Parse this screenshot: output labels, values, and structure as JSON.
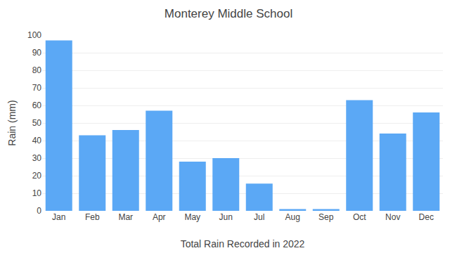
{
  "chart_data": {
    "type": "bar",
    "title": "Monterey Middle School",
    "xlabel": "Total Rain Recorded in 2022",
    "ylabel": "Rain (mm)",
    "categories": [
      "Jan",
      "Feb",
      "Mar",
      "Apr",
      "May",
      "Jun",
      "Jul",
      "Aug",
      "Sep",
      "Oct",
      "Nov",
      "Dec"
    ],
    "values": [
      97,
      43,
      46,
      57,
      28,
      30,
      15.5,
      1,
      1,
      63,
      44,
      56
    ],
    "color": "#5BA8F5",
    "ylim": [
      0,
      100
    ],
    "yticks": [
      0,
      10,
      20,
      30,
      40,
      50,
      60,
      70,
      80,
      90,
      100
    ],
    "grid": true
  }
}
